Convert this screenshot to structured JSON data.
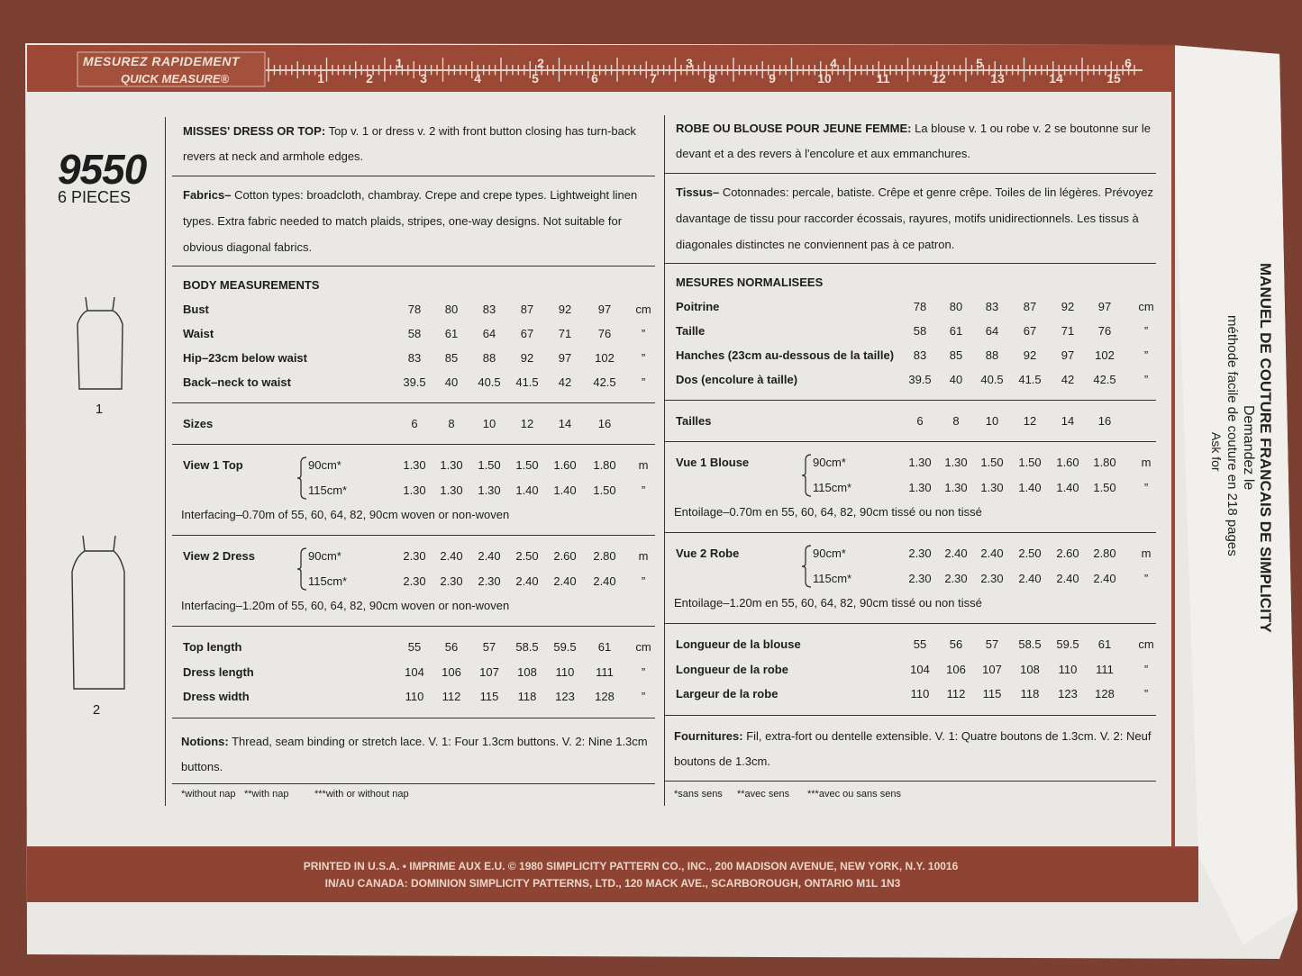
{
  "ruler": {
    "label_fr": "MESUREZ RAPIDEMENT",
    "label_en": "QUICK MEASURE®",
    "inches": [
      "1",
      "2",
      "3",
      "4",
      "5",
      "6"
    ],
    "cm": [
      "1",
      "2",
      "3",
      "4",
      "5",
      "6",
      "7",
      "8",
      "9",
      "10",
      "11",
      "12",
      "13",
      "14",
      "15"
    ]
  },
  "pattern": {
    "number": "9550",
    "pieces": "6 PIECES",
    "views": [
      "1",
      "2"
    ]
  },
  "english": {
    "intro": {
      "heading": "MISSES' DRESS OR TOP:",
      "text": "Top v. 1 or dress v. 2 with front button closing has turn-back revers at neck and armhole edges."
    },
    "fabrics": {
      "heading": "Fabrics–",
      "text": "Cotton types: broadcloth, chambray. Crepe and crepe types. Lightweight linen types. Extra fabric needed to match plaids, stripes, one-way designs. Not suitable for obvious diagonal fabrics."
    },
    "body_measurements": {
      "title": "BODY MEASUREMENTS",
      "rows": [
        {
          "label": "Bust",
          "values": [
            "78",
            "80",
            "83",
            "87",
            "92",
            "97"
          ],
          "unit": "cm"
        },
        {
          "label": "Waist",
          "values": [
            "58",
            "61",
            "64",
            "67",
            "71",
            "76"
          ],
          "unit": "”"
        },
        {
          "label": "Hip–23cm below waist",
          "values": [
            "83",
            "85",
            "88",
            "92",
            "97",
            "102"
          ],
          "unit": "”"
        },
        {
          "label": "Back–neck to waist",
          "values": [
            "39.5",
            "40",
            "40.5",
            "41.5",
            "42",
            "42.5"
          ],
          "unit": "”"
        }
      ]
    },
    "sizes": {
      "label": "Sizes",
      "values": [
        "6",
        "8",
        "10",
        "12",
        "14",
        "16"
      ]
    },
    "views": [
      {
        "label": "View 1 Top",
        "rows": [
          {
            "width": "90cm*",
            "values": [
              "1.30",
              "1.30",
              "1.50",
              "1.50",
              "1.60",
              "1.80"
            ],
            "unit": "m"
          },
          {
            "width": "115cm*",
            "values": [
              "1.30",
              "1.30",
              "1.30",
              "1.40",
              "1.40",
              "1.50"
            ],
            "unit": "”"
          }
        ],
        "interfacing": "Interfacing–0.70m of 55, 60, 64, 82, 90cm woven or non-woven"
      },
      {
        "label": "View 2 Dress",
        "rows": [
          {
            "width": "90cm*",
            "values": [
              "2.30",
              "2.40",
              "2.40",
              "2.50",
              "2.60",
              "2.80"
            ],
            "unit": "m"
          },
          {
            "width": "115cm*",
            "values": [
              "2.30",
              "2.30",
              "2.30",
              "2.40",
              "2.40",
              "2.40"
            ],
            "unit": "”"
          }
        ],
        "interfacing": "Interfacing–1.20m of 55, 60, 64, 82, 90cm woven or non-woven"
      }
    ],
    "lengths": [
      {
        "label": "Top length",
        "values": [
          "55",
          "56",
          "57",
          "58.5",
          "59.5",
          "61"
        ],
        "unit": "cm"
      },
      {
        "label": "Dress length",
        "values": [
          "104",
          "106",
          "107",
          "108",
          "110",
          "111"
        ],
        "unit": "”"
      },
      {
        "label": "Dress width",
        "values": [
          "110",
          "112",
          "115",
          "118",
          "123",
          "128"
        ],
        "unit": "”"
      }
    ],
    "notions": {
      "heading": "Notions:",
      "text": "Thread, seam binding or stretch lace. V. 1: Four 1.3cm buttons. V. 2: Nine 1.3cm buttons."
    },
    "footnotes": [
      "*without nap",
      "**with nap",
      "***with or without nap"
    ]
  },
  "french": {
    "intro": {
      "heading": "ROBE OU BLOUSE POUR JEUNE FEMME:",
      "text": "La blouse v. 1 ou robe v. 2 se boutonne sur le devant et a des revers à l'encolure et aux emmanchures."
    },
    "fabrics": {
      "heading": "Tissus–",
      "text": "Cotonnades: percale, batiste. Crêpe et genre crêpe. Toiles de lin légères. Prévoyez davantage de tissu pour raccorder écossais, rayures, motifs unidirectionnels. Les tissus à diagonales distinctes ne conviennent pas à ce patron."
    },
    "body_measurements": {
      "title": "MESURES NORMALISEES",
      "rows": [
        {
          "label": "Poitrine",
          "values": [
            "78",
            "80",
            "83",
            "87",
            "92",
            "97"
          ],
          "unit": "cm"
        },
        {
          "label": "Taille",
          "values": [
            "58",
            "61",
            "64",
            "67",
            "71",
            "76"
          ],
          "unit": "”"
        },
        {
          "label": "Hanches (23cm au-dessous de la taille)",
          "values": [
            "83",
            "85",
            "88",
            "92",
            "97",
            "102"
          ],
          "unit": "”"
        },
        {
          "label": "Dos (encolure à taille)",
          "values": [
            "39.5",
            "40",
            "40.5",
            "41.5",
            "42",
            "42.5"
          ],
          "unit": "”"
        }
      ]
    },
    "sizes": {
      "label": "Tailles",
      "values": [
        "6",
        "8",
        "10",
        "12",
        "14",
        "16"
      ]
    },
    "views": [
      {
        "label": "Vue 1 Blouse",
        "rows": [
          {
            "width": "90cm*",
            "values": [
              "1.30",
              "1.30",
              "1.50",
              "1.50",
              "1.60",
              "1.80"
            ],
            "unit": "m"
          },
          {
            "width": "115cm*",
            "values": [
              "1.30",
              "1.30",
              "1.30",
              "1.40",
              "1.40",
              "1.50"
            ],
            "unit": "”"
          }
        ],
        "interfacing": "Entoilage–0.70m en 55, 60, 64, 82, 90cm tissé ou non tissé"
      },
      {
        "label": "Vue 2 Robe",
        "rows": [
          {
            "width": "90cm*",
            "values": [
              "2.30",
              "2.40",
              "2.40",
              "2.50",
              "2.60",
              "2.80"
            ],
            "unit": "m"
          },
          {
            "width": "115cm*",
            "values": [
              "2.30",
              "2.30",
              "2.30",
              "2.40",
              "2.40",
              "2.40"
            ],
            "unit": "”"
          }
        ],
        "interfacing": "Entoilage–1.20m en 55, 60, 64, 82, 90cm tissé ou non tissé"
      }
    ],
    "lengths": [
      {
        "label": "Longueur de la blouse",
        "values": [
          "55",
          "56",
          "57",
          "58.5",
          "59.5",
          "61"
        ],
        "unit": "cm"
      },
      {
        "label": "Longueur de la robe",
        "values": [
          "104",
          "106",
          "107",
          "108",
          "110",
          "111"
        ],
        "unit": "”"
      },
      {
        "label": "Largeur de la robe",
        "values": [
          "110",
          "112",
          "115",
          "118",
          "123",
          "128"
        ],
        "unit": "”"
      }
    ],
    "notions": {
      "heading": "Fournitures:",
      "text": "Fil, extra-fort ou dentelle extensible. V. 1: Quatre boutons de 1.3cm. V. 2: Neuf boutons de 1.3cm."
    },
    "footnotes": [
      "*sans sens",
      "**avec sens",
      "***avec ou sans sens"
    ]
  },
  "side_note": {
    "line1": "Demandez le",
    "line2": "MANUEL DE COUTURE FRANCAIS DE SIMPLICITY",
    "line3": "méthode facile de couture en 218 pages",
    "line4": "Ask for"
  },
  "footer": {
    "line1": "PRINTED IN U.S.A. • IMPRIME AUX E.U. © 1980 SIMPLICITY PATTERN CO., INC., 200 MADISON AVENUE, NEW YORK, N.Y. 10016",
    "line2": "IN/AU CANADA: DOMINION SIMPLICITY PATTERNS, LTD., 120 MACK AVE., SCARBOROUGH, ONTARIO M1L 1N3"
  }
}
